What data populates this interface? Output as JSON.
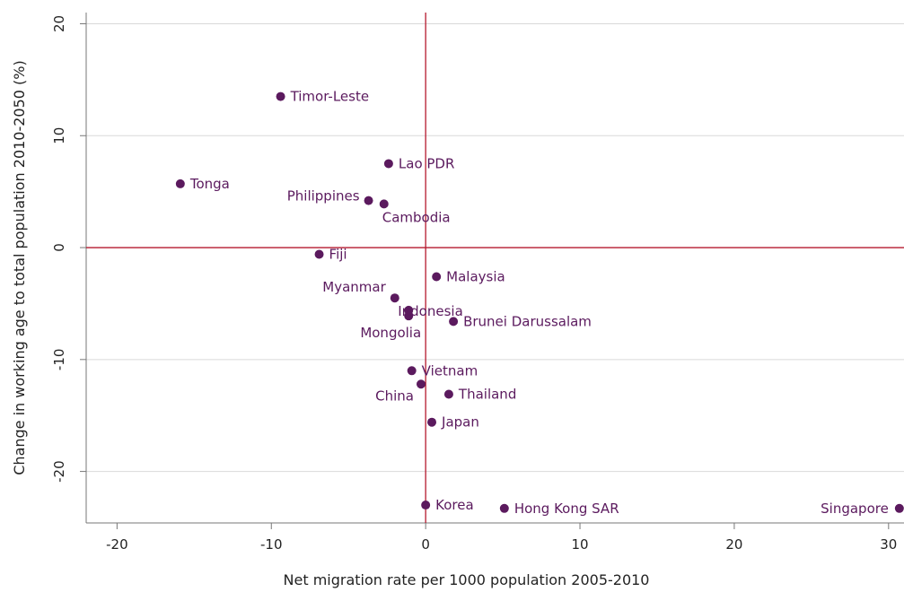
{
  "chart_data": {
    "type": "scatter",
    "title": "",
    "xlabel": "Net migration rate per 1000 population 2005-2010",
    "ylabel": "Change in working age to total population 2010-2050 (%)",
    "xlim": [
      -22,
      31
    ],
    "ylim": [
      -24.6,
      21
    ],
    "xticks": [
      "-20",
      "-10",
      "0",
      "10",
      "20",
      "30"
    ],
    "yticks": [
      "-20",
      "-10",
      "0",
      "10",
      "20"
    ],
    "grid": true,
    "reference_lines": {
      "x": 0,
      "y": 0
    },
    "colors": {
      "point": "#5b1a5e",
      "label": "#5b1a5e",
      "reference_line": "#b5192e",
      "grid": "#d9d9d9",
      "axis": "#777777"
    },
    "points": [
      {
        "label": "Timor-Leste",
        "x": -9.4,
        "y": 13.5
      },
      {
        "label": "Lao PDR",
        "x": -2.4,
        "y": 7.5
      },
      {
        "label": "Tonga",
        "x": -15.9,
        "y": 5.7
      },
      {
        "label": "Philippines",
        "x": -3.7,
        "y": 4.2
      },
      {
        "label": "Cambodia",
        "x": -2.7,
        "y": 3.9
      },
      {
        "label": "Fiji",
        "x": -6.9,
        "y": -0.6
      },
      {
        "label": "Malaysia",
        "x": 0.7,
        "y": -2.6
      },
      {
        "label": "Myanmar",
        "x": -2.0,
        "y": -4.5
      },
      {
        "label": "Indonesia",
        "x": -1.1,
        "y": -5.6
      },
      {
        "label": "Mongolia",
        "x": -1.1,
        "y": -6.1
      },
      {
        "label": "Brunei Darussalam",
        "x": 1.8,
        "y": -6.6
      },
      {
        "label": "Vietnam",
        "x": -0.9,
        "y": -11.0
      },
      {
        "label": "China",
        "x": -0.3,
        "y": -12.2
      },
      {
        "label": "Thailand",
        "x": 1.5,
        "y": -13.1
      },
      {
        "label": "Japan",
        "x": 0.4,
        "y": -15.6
      },
      {
        "label": "Korea",
        "x": 0.0,
        "y": -23.0
      },
      {
        "label": "Hong Kong SAR",
        "x": 5.1,
        "y": -23.3
      },
      {
        "label": "Singapore",
        "x": 30.7,
        "y": -23.3
      }
    ]
  }
}
